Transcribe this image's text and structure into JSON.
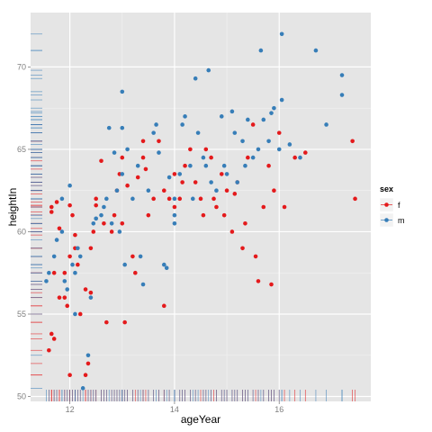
{
  "chart_data": {
    "type": "scatter",
    "xlabel": "ageYear",
    "ylabel": "heightIn",
    "xlim": [
      11.25,
      17.75
    ],
    "ylim": [
      49.7,
      73.3
    ],
    "x_ticks": [
      12,
      14,
      16
    ],
    "y_ticks": [
      50,
      55,
      60,
      65,
      70
    ],
    "x_tick_labels": [
      "12",
      "14",
      "16"
    ],
    "y_tick_labels": [
      "50",
      "55",
      "60",
      "65",
      "70"
    ],
    "grid": true,
    "rug": true,
    "legend": {
      "title": "sex",
      "position": "right",
      "entries": [
        {
          "label": "f",
          "color": "#e41a1c"
        },
        {
          "label": "m",
          "color": "#377eb8"
        }
      ]
    },
    "series": [
      {
        "name": "f",
        "color": "#e41a1c",
        "points": [
          [
            11.6,
            52.8
          ],
          [
            11.65,
            53.8
          ],
          [
            11.7,
            53.5
          ],
          [
            11.7,
            57.5
          ],
          [
            11.8,
            56.0
          ],
          [
            11.8,
            60.2
          ],
          [
            11.65,
            61.2
          ],
          [
            11.75,
            61.8
          ],
          [
            11.65,
            61.5
          ],
          [
            11.9,
            57.5
          ],
          [
            11.9,
            56.0
          ],
          [
            11.95,
            55.5
          ],
          [
            12.0,
            51.3
          ],
          [
            12.0,
            58.5
          ],
          [
            12.0,
            61.6
          ],
          [
            12.05,
            61.0
          ],
          [
            12.1,
            59.8
          ],
          [
            12.1,
            59.0
          ],
          [
            12.15,
            58.0
          ],
          [
            12.2,
            55.0
          ],
          [
            12.3,
            56.5
          ],
          [
            12.35,
            52.0
          ],
          [
            12.3,
            51.3
          ],
          [
            12.4,
            56.3
          ],
          [
            12.4,
            59.0
          ],
          [
            12.45,
            60.0
          ],
          [
            12.5,
            62.0
          ],
          [
            12.5,
            61.6
          ],
          [
            12.6,
            64.3
          ],
          [
            12.65,
            60.5
          ],
          [
            12.7,
            54.5
          ],
          [
            12.8,
            60.0
          ],
          [
            12.85,
            61.0
          ],
          [
            12.9,
            62.5
          ],
          [
            12.95,
            63.5
          ],
          [
            13.0,
            64.5
          ],
          [
            13.0,
            60.5
          ],
          [
            13.1,
            62.8
          ],
          [
            13.2,
            58.5
          ],
          [
            13.25,
            57.5
          ],
          [
            13.05,
            54.5
          ],
          [
            13.3,
            63.3
          ],
          [
            13.4,
            64.5
          ],
          [
            13.4,
            65.5
          ],
          [
            13.45,
            63.8
          ],
          [
            13.5,
            61.0
          ],
          [
            13.6,
            62.0
          ],
          [
            13.7,
            65.5
          ],
          [
            13.8,
            62.5
          ],
          [
            13.8,
            55.5
          ],
          [
            13.9,
            62.0
          ],
          [
            14.0,
            63.5
          ],
          [
            14.0,
            61.5
          ],
          [
            14.1,
            62.0
          ],
          [
            14.15,
            63.0
          ],
          [
            14.2,
            64.0
          ],
          [
            14.3,
            65.0
          ],
          [
            14.4,
            63.0
          ],
          [
            14.5,
            62.0
          ],
          [
            14.55,
            61.0
          ],
          [
            14.6,
            65.0
          ],
          [
            14.7,
            64.5
          ],
          [
            14.75,
            62.0
          ],
          [
            14.8,
            61.5
          ],
          [
            14.9,
            63.5
          ],
          [
            14.95,
            61.0
          ],
          [
            15.0,
            62.5
          ],
          [
            15.1,
            60.0
          ],
          [
            15.15,
            62.3
          ],
          [
            15.2,
            63.0
          ],
          [
            15.3,
            59.0
          ],
          [
            15.35,
            60.5
          ],
          [
            15.4,
            64.5
          ],
          [
            15.5,
            66.5
          ],
          [
            15.55,
            58.5
          ],
          [
            15.6,
            57.0
          ],
          [
            15.7,
            61.5
          ],
          [
            15.8,
            64.0
          ],
          [
            15.85,
            56.8
          ],
          [
            15.9,
            62.5
          ],
          [
            16.0,
            66.0
          ],
          [
            16.1,
            61.5
          ],
          [
            16.3,
            64.5
          ],
          [
            16.5,
            64.8
          ],
          [
            17.4,
            65.5
          ],
          [
            17.45,
            62.0
          ]
        ]
      },
      {
        "name": "m",
        "color": "#377eb8",
        "points": [
          [
            11.55,
            57.0
          ],
          [
            11.6,
            57.5
          ],
          [
            11.7,
            58.5
          ],
          [
            11.75,
            59.5
          ],
          [
            11.85,
            60.0
          ],
          [
            11.85,
            62.0
          ],
          [
            11.9,
            57.0
          ],
          [
            11.95,
            56.5
          ],
          [
            12.0,
            62.8
          ],
          [
            12.05,
            58.0
          ],
          [
            12.1,
            57.5
          ],
          [
            12.1,
            55.0
          ],
          [
            12.15,
            59.0
          ],
          [
            12.2,
            58.5
          ],
          [
            12.25,
            50.5
          ],
          [
            12.35,
            52.5
          ],
          [
            12.4,
            56.0
          ],
          [
            12.45,
            60.5
          ],
          [
            12.5,
            60.8
          ],
          [
            12.6,
            61.0
          ],
          [
            12.65,
            61.5
          ],
          [
            12.7,
            62.0
          ],
          [
            12.75,
            66.3
          ],
          [
            12.8,
            60.5
          ],
          [
            12.85,
            64.8
          ],
          [
            12.9,
            62.5
          ],
          [
            12.95,
            60.0
          ],
          [
            13.0,
            63.5
          ],
          [
            13.05,
            58.0
          ],
          [
            13.1,
            65.0
          ],
          [
            13.0,
            66.3
          ],
          [
            13.0,
            68.5
          ],
          [
            13.2,
            62.0
          ],
          [
            13.3,
            64.0
          ],
          [
            13.35,
            58.5
          ],
          [
            13.4,
            56.8
          ],
          [
            13.5,
            62.5
          ],
          [
            13.6,
            66.0
          ],
          [
            13.65,
            66.5
          ],
          [
            13.7,
            64.8
          ],
          [
            13.8,
            58.0
          ],
          [
            13.85,
            57.8
          ],
          [
            13.9,
            63.3
          ],
          [
            14.0,
            62.0
          ],
          [
            14.0,
            61.0
          ],
          [
            14.0,
            60.5
          ],
          [
            14.1,
            63.5
          ],
          [
            14.15,
            66.5
          ],
          [
            14.2,
            67.0
          ],
          [
            14.3,
            64.0
          ],
          [
            14.35,
            62.0
          ],
          [
            14.4,
            69.3
          ],
          [
            14.45,
            66.0
          ],
          [
            14.55,
            64.5
          ],
          [
            14.6,
            64.0
          ],
          [
            14.65,
            69.8
          ],
          [
            14.7,
            63.0
          ],
          [
            14.8,
            62.5
          ],
          [
            14.9,
            67.0
          ],
          [
            14.95,
            64.0
          ],
          [
            15.0,
            63.5
          ],
          [
            15.1,
            67.3
          ],
          [
            15.15,
            66.0
          ],
          [
            15.2,
            63.0
          ],
          [
            15.3,
            65.5
          ],
          [
            15.35,
            64.0
          ],
          [
            15.4,
            66.8
          ],
          [
            15.5,
            64.5
          ],
          [
            15.6,
            65.0
          ],
          [
            15.65,
            71.0
          ],
          [
            15.7,
            66.8
          ],
          [
            15.8,
            65.5
          ],
          [
            15.85,
            67.2
          ],
          [
            15.9,
            67.5
          ],
          [
            16.0,
            65.0
          ],
          [
            16.05,
            68.0
          ],
          [
            16.05,
            72.0
          ],
          [
            16.2,
            65.3
          ],
          [
            16.4,
            64.5
          ],
          [
            16.7,
            71.0
          ],
          [
            16.9,
            66.5
          ],
          [
            17.2,
            68.3
          ],
          [
            17.2,
            69.5
          ]
        ]
      }
    ]
  }
}
